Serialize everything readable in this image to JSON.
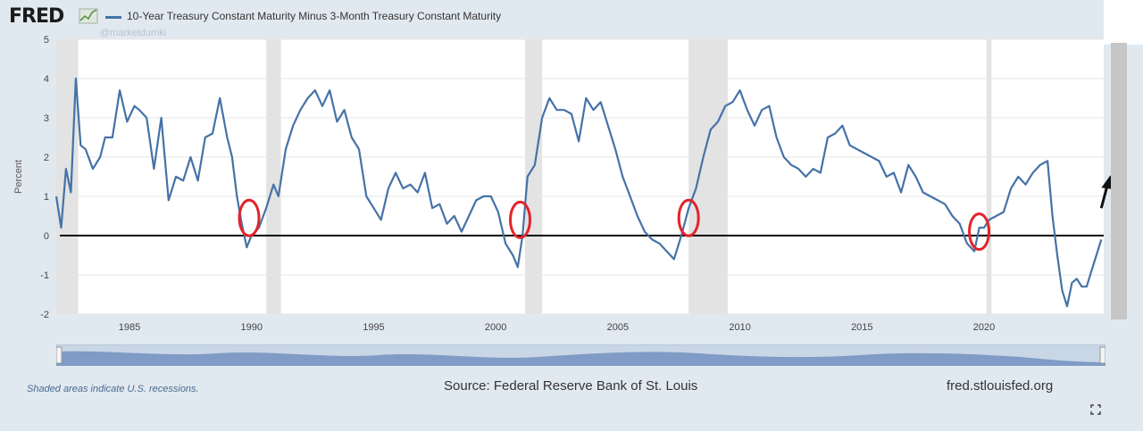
{
  "header": {
    "brand": "FRED",
    "brand_icon": "fred-graph-icon",
    "legend_label": "10-Year Treasury Constant Maturity Minus 3-Month Treasury Constant Maturity",
    "watermark": "@marketdumki"
  },
  "footer": {
    "recession_note": "Shaded areas indicate U.S. recessions.",
    "source": "Source: Federal Reserve Bank of St. Louis",
    "site": "fred.stlouisfed.org",
    "fullscreen_icon": "fullscreen-icon"
  },
  "colors": {
    "series": "#4572a7",
    "recession": "#e3e3e3",
    "circle": "#e2232a",
    "zero_line": "#000000",
    "background": "#e1e9f0"
  },
  "chart_data": {
    "type": "line",
    "title": "10-Year Treasury Constant Maturity Minus 3-Month Treasury Constant Maturity",
    "ylabel": "Percent",
    "xlabel": "",
    "xlim": [
      1982.0,
      2024.9
    ],
    "ylim": [
      -2,
      5
    ],
    "yticks": [
      5,
      4,
      3,
      2,
      1,
      0,
      -1,
      -2
    ],
    "xticks": [
      1985,
      1990,
      1995,
      2000,
      2005,
      2010,
      2015,
      2020
    ],
    "grid": true,
    "legend": "top-left",
    "recessions": [
      [
        1982.0,
        1982.9
      ],
      [
        1990.6,
        1991.2
      ],
      [
        2001.2,
        2001.9
      ],
      [
        2007.9,
        2009.5
      ],
      [
        2020.1,
        2020.3
      ]
    ],
    "annotations": {
      "zero_line": 0,
      "circles": [
        {
          "x": 1989.9,
          "y": 0.45
        },
        {
          "x": 2001.0,
          "y": 0.4
        },
        {
          "x": 2007.9,
          "y": 0.45
        },
        {
          "x": 2019.8,
          "y": 0.1
        }
      ],
      "arrow": {
        "from": [
          2024.8,
          0.7
        ],
        "to": [
          2025.1,
          1.4
        ]
      }
    },
    "series": [
      {
        "name": "10-Year Treasury Constant Maturity Minus 3-Month Treasury Constant Maturity",
        "x": [
          1982.0,
          1982.2,
          1982.4,
          1982.6,
          1982.8,
          1983.0,
          1983.2,
          1983.5,
          1983.8,
          1984.0,
          1984.3,
          1984.6,
          1984.9,
          1985.2,
          1985.4,
          1985.7,
          1986.0,
          1986.3,
          1986.6,
          1986.9,
          1987.2,
          1987.5,
          1987.8,
          1988.1,
          1988.4,
          1988.7,
          1989.0,
          1989.2,
          1989.4,
          1989.6,
          1989.8,
          1990.0,
          1990.3,
          1990.6,
          1990.9,
          1991.1,
          1991.4,
          1991.7,
          1992.0,
          1992.3,
          1992.6,
          1992.9,
          1993.2,
          1993.5,
          1993.8,
          1994.1,
          1994.4,
          1994.7,
          1995.0,
          1995.3,
          1995.6,
          1995.9,
          1996.2,
          1996.5,
          1996.8,
          1997.1,
          1997.4,
          1997.7,
          1998.0,
          1998.3,
          1998.6,
          1998.9,
          1999.2,
          1999.5,
          1999.8,
          2000.1,
          2000.4,
          2000.7,
          2000.9,
          2001.1,
          2001.3,
          2001.6,
          2001.9,
          2002.2,
          2002.5,
          2002.8,
          2003.1,
          2003.4,
          2003.7,
          2004.0,
          2004.3,
          2004.6,
          2004.9,
          2005.2,
          2005.5,
          2005.8,
          2006.1,
          2006.4,
          2006.7,
          2007.0,
          2007.3,
          2007.6,
          2007.9,
          2008.2,
          2008.5,
          2008.8,
          2009.1,
          2009.4,
          2009.7,
          2010.0,
          2010.3,
          2010.6,
          2010.9,
          2011.2,
          2011.5,
          2011.8,
          2012.1,
          2012.4,
          2012.7,
          2013.0,
          2013.3,
          2013.6,
          2013.9,
          2014.2,
          2014.5,
          2014.8,
          2015.1,
          2015.4,
          2015.7,
          2016.0,
          2016.3,
          2016.6,
          2016.9,
          2017.2,
          2017.5,
          2017.8,
          2018.1,
          2018.4,
          2018.7,
          2019.0,
          2019.3,
          2019.6,
          2019.8,
          2020.0,
          2020.2,
          2020.5,
          2020.8,
          2021.1,
          2021.4,
          2021.7,
          2022.0,
          2022.3,
          2022.6,
          2022.8,
          2023.0,
          2023.2,
          2023.4,
          2023.6,
          2023.8,
          2024.0,
          2024.2,
          2024.4,
          2024.6,
          2024.8
        ],
        "values": [
          1.0,
          0.2,
          1.7,
          1.1,
          4.0,
          2.3,
          2.2,
          1.7,
          2.0,
          2.5,
          2.5,
          3.7,
          2.9,
          3.3,
          3.2,
          3.0,
          1.7,
          3.0,
          0.9,
          1.5,
          1.4,
          2.0,
          1.4,
          2.5,
          2.6,
          3.5,
          2.5,
          2.0,
          1.0,
          0.3,
          -0.3,
          0.0,
          0.2,
          0.7,
          1.3,
          1.0,
          2.2,
          2.8,
          3.2,
          3.5,
          3.7,
          3.3,
          3.7,
          2.9,
          3.2,
          2.5,
          2.2,
          1.0,
          0.7,
          0.4,
          1.2,
          1.6,
          1.2,
          1.3,
          1.1,
          1.6,
          0.7,
          0.8,
          0.3,
          0.5,
          0.1,
          0.5,
          0.9,
          1.0,
          1.0,
          0.6,
          -0.2,
          -0.5,
          -0.8,
          0.0,
          1.5,
          1.8,
          3.0,
          3.5,
          3.2,
          3.2,
          3.1,
          2.4,
          3.5,
          3.2,
          3.4,
          2.8,
          2.2,
          1.5,
          1.0,
          0.5,
          0.1,
          -0.1,
          -0.2,
          -0.4,
          -0.6,
          0.0,
          0.7,
          1.2,
          2.0,
          2.7,
          2.9,
          3.3,
          3.4,
          3.7,
          3.2,
          2.8,
          3.2,
          3.3,
          2.5,
          2.0,
          1.8,
          1.7,
          1.5,
          1.7,
          1.6,
          2.5,
          2.6,
          2.8,
          2.3,
          2.2,
          2.1,
          2.0,
          1.9,
          1.5,
          1.6,
          1.1,
          1.8,
          1.5,
          1.1,
          1.0,
          0.9,
          0.8,
          0.5,
          0.3,
          -0.2,
          -0.4,
          0.2,
          0.2,
          0.4,
          0.5,
          0.6,
          1.2,
          1.5,
          1.3,
          1.6,
          1.8,
          1.9,
          0.5,
          -0.5,
          -1.4,
          -1.8,
          -1.2,
          -1.1,
          -1.3,
          -1.3,
          -0.9,
          -0.5,
          -0.1
        ]
      }
    ]
  }
}
